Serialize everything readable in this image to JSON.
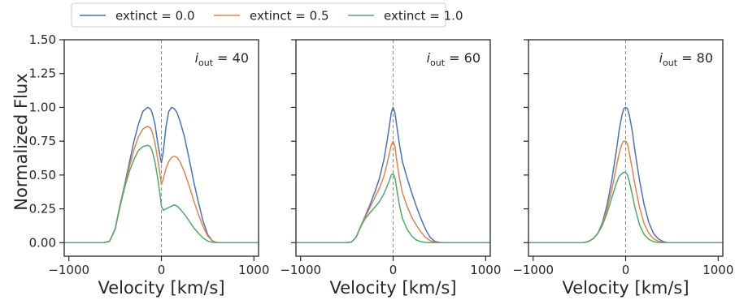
{
  "chart_data": {
    "type": "line",
    "shared_ylabel": "Normalized Flux",
    "legend": {
      "placement": "top-left",
      "entries": [
        {
          "label": "extinct = 0.0",
          "color": "#4c72b0"
        },
        {
          "label": "extinct = 0.5",
          "color": "#dd8452"
        },
        {
          "label": "extinct = 1.0",
          "color": "#55a868"
        }
      ]
    },
    "ylim": [
      -0.1,
      1.5
    ],
    "yticks": [
      "0.00",
      "0.25",
      "0.50",
      "0.75",
      "1.00",
      "1.25",
      "1.50"
    ],
    "ytick_values": [
      0,
      0.25,
      0.5,
      0.75,
      1.0,
      1.25,
      1.5
    ],
    "xlim": [
      -1050,
      1050
    ],
    "xticks": [
      "−1000",
      "0",
      "1000"
    ],
    "xtick_values": [
      -1000,
      0,
      1000
    ],
    "reference_line": {
      "x": 0,
      "style": "dashed",
      "color": "#8c8c8c"
    },
    "panels": [
      {
        "annotation": {
          "var": "i",
          "sub": "out",
          "text": " = 40"
        },
        "xlabel": "Velocity [km/s]",
        "series": [
          {
            "name": "extinct = 0.0",
            "color": "#4c72b0",
            "x": [
              -1050,
              -620,
              -560,
              -500,
              -450,
              -400,
              -350,
              -300,
              -250,
              -200,
              -150,
              -120,
              -100,
              -70,
              -40,
              -10,
              0,
              20,
              50,
              80,
              110,
              140,
              170,
              200,
              250,
              300,
              350,
              400,
              450,
              500,
              550,
              600,
              650,
              1050
            ],
            "y": [
              0,
              0,
              0.01,
              0.1,
              0.27,
              0.42,
              0.58,
              0.74,
              0.87,
              0.97,
              1.0,
              0.99,
              0.96,
              0.88,
              0.74,
              0.62,
              0.59,
              0.67,
              0.86,
              0.97,
              1.0,
              0.99,
              0.96,
              0.9,
              0.78,
              0.62,
              0.45,
              0.3,
              0.16,
              0.06,
              0.015,
              0,
              0,
              0
            ]
          },
          {
            "name": "extinct = 0.5",
            "color": "#dd8452",
            "x": [
              -1050,
              -620,
              -560,
              -500,
              -450,
              -400,
              -350,
              -300,
              -250,
              -200,
              -150,
              -120,
              -100,
              -70,
              -40,
              -10,
              0,
              20,
              50,
              80,
              110,
              140,
              170,
              200,
              250,
              300,
              350,
              400,
              450,
              500,
              550,
              600,
              650,
              1050
            ],
            "y": [
              0,
              0,
              0.01,
              0.1,
              0.26,
              0.41,
              0.55,
              0.68,
              0.78,
              0.84,
              0.86,
              0.85,
              0.82,
              0.74,
              0.62,
              0.48,
              0.43,
              0.47,
              0.55,
              0.6,
              0.63,
              0.64,
              0.63,
              0.6,
              0.52,
              0.42,
              0.31,
              0.21,
              0.12,
              0.05,
              0.012,
              0,
              0,
              0
            ]
          },
          {
            "name": "extinct = 1.0",
            "color": "#55a868",
            "x": [
              -1050,
              -620,
              -560,
              -500,
              -450,
              -400,
              -350,
              -300,
              -250,
              -200,
              -150,
              -120,
              -100,
              -70,
              -40,
              -10,
              0,
              20,
              50,
              80,
              110,
              140,
              170,
              200,
              250,
              300,
              350,
              400,
              450,
              500,
              550,
              600,
              650,
              1050
            ],
            "y": [
              0,
              0,
              0.01,
              0.1,
              0.26,
              0.4,
              0.52,
              0.61,
              0.68,
              0.71,
              0.72,
              0.71,
              0.68,
              0.6,
              0.48,
              0.33,
              0.27,
              0.24,
              0.25,
              0.26,
              0.27,
              0.28,
              0.27,
              0.25,
              0.21,
              0.16,
              0.11,
              0.07,
              0.035,
              0.012,
              0.003,
              0,
              0,
              0
            ]
          }
        ]
      },
      {
        "annotation": {
          "var": "i",
          "sub": "out",
          "text": " = 60"
        },
        "xlabel": "Velocity [km/s]",
        "series": [
          {
            "name": "extinct = 0.0",
            "color": "#4c72b0",
            "x": [
              -1050,
              -500,
              -450,
              -400,
              -350,
              -300,
              -250,
              -200,
              -150,
              -100,
              -70,
              -40,
              -20,
              0,
              20,
              40,
              70,
              100,
              150,
              200,
              250,
              300,
              350,
              400,
              450,
              500,
              550,
              1050
            ],
            "y": [
              0,
              0,
              0.005,
              0.04,
              0.12,
              0.2,
              0.28,
              0.37,
              0.47,
              0.61,
              0.73,
              0.86,
              0.96,
              1.0,
              0.96,
              0.86,
              0.72,
              0.6,
              0.48,
              0.37,
              0.27,
              0.18,
              0.1,
              0.04,
              0.01,
              0.002,
              0,
              0
            ]
          },
          {
            "name": "extinct = 0.5",
            "color": "#dd8452",
            "x": [
              -1050,
              -500,
              -450,
              -400,
              -350,
              -300,
              -250,
              -200,
              -150,
              -100,
              -70,
              -40,
              -20,
              0,
              20,
              40,
              70,
              100,
              150,
              200,
              250,
              300,
              350,
              400,
              450,
              500,
              550,
              1050
            ],
            "y": [
              0,
              0,
              0.005,
              0.04,
              0.12,
              0.19,
              0.26,
              0.33,
              0.4,
              0.49,
              0.57,
              0.66,
              0.72,
              0.75,
              0.71,
              0.6,
              0.47,
              0.37,
              0.27,
              0.19,
              0.13,
              0.08,
              0.04,
              0.015,
              0.004,
              0.001,
              0,
              0
            ]
          },
          {
            "name": "extinct = 1.0",
            "color": "#55a868",
            "x": [
              -1050,
              -500,
              -450,
              -400,
              -350,
              -300,
              -250,
              -200,
              -150,
              -100,
              -70,
              -40,
              -20,
              0,
              20,
              40,
              70,
              100,
              150,
              200,
              250,
              300,
              350,
              400,
              450,
              500,
              550,
              1050
            ],
            "y": [
              0,
              0,
              0.005,
              0.04,
              0.12,
              0.18,
              0.22,
              0.26,
              0.3,
              0.36,
              0.41,
              0.46,
              0.5,
              0.51,
              0.48,
              0.39,
              0.27,
              0.18,
              0.1,
              0.05,
              0.02,
              0.008,
              0.002,
              0,
              0,
              0,
              0,
              0
            ]
          }
        ]
      },
      {
        "annotation": {
          "var": "i",
          "sub": "out",
          "text": " = 80"
        },
        "xlabel": "Velocity [km/s]",
        "series": [
          {
            "name": "extinct = 0.0",
            "color": "#4c72b0",
            "x": [
              -1050,
              -450,
              -400,
              -350,
              -300,
              -250,
              -200,
              -150,
              -100,
              -70,
              -40,
              -20,
              0,
              20,
              40,
              70,
              100,
              150,
              200,
              250,
              300,
              350,
              400,
              450,
              1050
            ],
            "y": [
              0,
              0,
              0.01,
              0.03,
              0.07,
              0.15,
              0.28,
              0.46,
              0.68,
              0.83,
              0.94,
              0.99,
              1.0,
              0.99,
              0.94,
              0.83,
              0.68,
              0.46,
              0.28,
              0.15,
              0.07,
              0.03,
              0.01,
              0,
              0
            ]
          },
          {
            "name": "extinct = 0.5",
            "color": "#dd8452",
            "x": [
              -1050,
              -450,
              -400,
              -350,
              -300,
              -250,
              -200,
              -150,
              -100,
              -70,
              -40,
              -20,
              0,
              20,
              40,
              70,
              100,
              150,
              200,
              250,
              300,
              350,
              400,
              450,
              1050
            ],
            "y": [
              0,
              0,
              0.01,
              0.03,
              0.07,
              0.14,
              0.25,
              0.39,
              0.56,
              0.66,
              0.73,
              0.75,
              0.75,
              0.73,
              0.66,
              0.55,
              0.43,
              0.26,
              0.14,
              0.07,
              0.03,
              0.012,
              0.004,
              0,
              0
            ]
          },
          {
            "name": "extinct = 1.0",
            "color": "#55a868",
            "x": [
              -1050,
              -450,
              -400,
              -350,
              -300,
              -250,
              -200,
              -150,
              -100,
              -70,
              -40,
              -20,
              0,
              20,
              40,
              70,
              100,
              150,
              200,
              250,
              300,
              350,
              400,
              450,
              1050
            ],
            "y": [
              0,
              0,
              0.01,
              0.03,
              0.07,
              0.13,
              0.22,
              0.33,
              0.44,
              0.49,
              0.51,
              0.52,
              0.52,
              0.5,
              0.45,
              0.36,
              0.26,
              0.13,
              0.06,
              0.025,
              0.008,
              0.002,
              0,
              0,
              0
            ]
          }
        ]
      }
    ]
  }
}
